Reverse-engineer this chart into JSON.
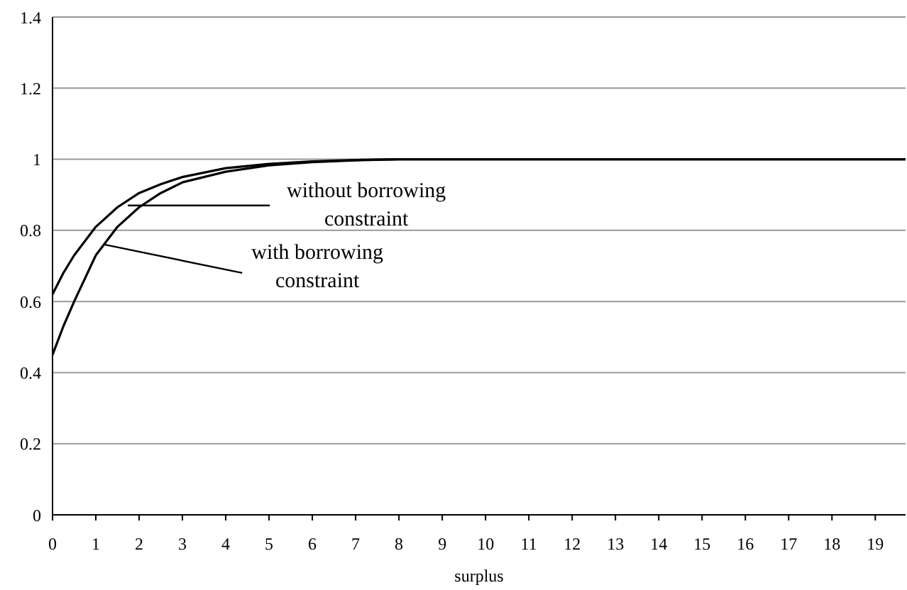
{
  "chart_data": {
    "type": "line",
    "xlabel": "surplus",
    "xlim": [
      0,
      19.7
    ],
    "xticks": [
      0,
      1,
      2,
      3,
      4,
      5,
      6,
      7,
      8,
      9,
      10,
      11,
      12,
      13,
      14,
      15,
      16,
      17,
      18,
      19
    ],
    "ylim": [
      0,
      1.4
    ],
    "yticks": [
      0,
      0.2,
      0.4,
      0.6,
      0.8,
      1,
      1.2,
      1.4
    ],
    "grid": "y",
    "marker": "none",
    "line_style": "solid",
    "series": [
      {
        "color": "#000000",
        "x": [
          0,
          0.25,
          0.5,
          1,
          1.5,
          2,
          2.5,
          3,
          4,
          5,
          6,
          7,
          8,
          10,
          19.7
        ],
        "values": [
          0.62,
          0.68,
          0.73,
          0.81,
          0.865,
          0.905,
          0.93,
          0.95,
          0.975,
          0.987,
          0.994,
          0.998,
          1,
          1,
          1
        ]
      },
      {
        "color": "#000000",
        "x": [
          0,
          0.25,
          0.5,
          1,
          1.5,
          2,
          2.5,
          3,
          4,
          5,
          6,
          7,
          8,
          10,
          19.7
        ],
        "values": [
          0.45,
          0.53,
          0.6,
          0.73,
          0.81,
          0.865,
          0.905,
          0.935,
          0.965,
          0.983,
          0.992,
          0.997,
          1,
          1,
          1
        ]
      }
    ],
    "annotations": [
      {
        "text": "without borrowing constraint",
        "x": 1.74,
        "y": 0.87
      },
      {
        "text": "with borrowing constraint",
        "x": 1.2,
        "y": 0.76
      }
    ]
  }
}
